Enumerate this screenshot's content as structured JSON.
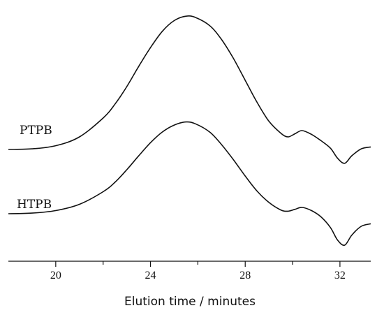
{
  "chart_data": {
    "type": "line",
    "xlabel": "Elution time / minutes",
    "ylabel": "",
    "title": "",
    "xlim": [
      18,
      33.3
    ],
    "x_ticks": [
      20,
      24,
      28,
      32
    ],
    "x_minor_ticks": [
      22,
      26,
      30
    ],
    "y_axis_shown": false,
    "grid": false,
    "series": [
      {
        "name": "PTPB",
        "x": [
          18.0,
          19.0,
          20.0,
          21.0,
          22.0,
          22.5,
          23.0,
          23.5,
          24.0,
          24.5,
          25.0,
          25.5,
          25.9,
          26.5,
          27.0,
          27.5,
          28.0,
          28.5,
          29.0,
          29.5,
          29.8,
          30.1,
          30.4,
          30.8,
          31.2,
          31.6,
          31.9,
          32.2,
          32.5,
          32.9,
          33.3
        ],
        "values": [
          0.0,
          0.01,
          0.06,
          0.2,
          0.5,
          0.72,
          1.0,
          1.32,
          1.62,
          1.88,
          2.05,
          2.12,
          2.1,
          1.97,
          1.75,
          1.45,
          1.1,
          0.75,
          0.45,
          0.26,
          0.2,
          0.25,
          0.3,
          0.24,
          0.14,
          0.02,
          -0.14,
          -0.22,
          -0.1,
          0.01,
          0.04
        ]
      },
      {
        "name": "HTPB",
        "x": [
          18.0,
          19.0,
          20.0,
          21.0,
          22.0,
          22.5,
          23.0,
          23.5,
          24.0,
          24.5,
          25.0,
          25.5,
          25.9,
          26.5,
          27.0,
          27.5,
          28.0,
          28.5,
          29.0,
          29.5,
          29.8,
          30.1,
          30.4,
          30.8,
          31.2,
          31.6,
          31.9,
          32.2,
          32.5,
          32.9,
          33.3
        ],
        "values": [
          0.0,
          0.01,
          0.05,
          0.15,
          0.35,
          0.5,
          0.7,
          0.92,
          1.13,
          1.3,
          1.41,
          1.46,
          1.43,
          1.3,
          1.1,
          0.86,
          0.6,
          0.36,
          0.18,
          0.06,
          0.04,
          0.07,
          0.1,
          0.05,
          -0.05,
          -0.22,
          -0.42,
          -0.5,
          -0.34,
          -0.2,
          -0.16
        ]
      }
    ]
  }
}
